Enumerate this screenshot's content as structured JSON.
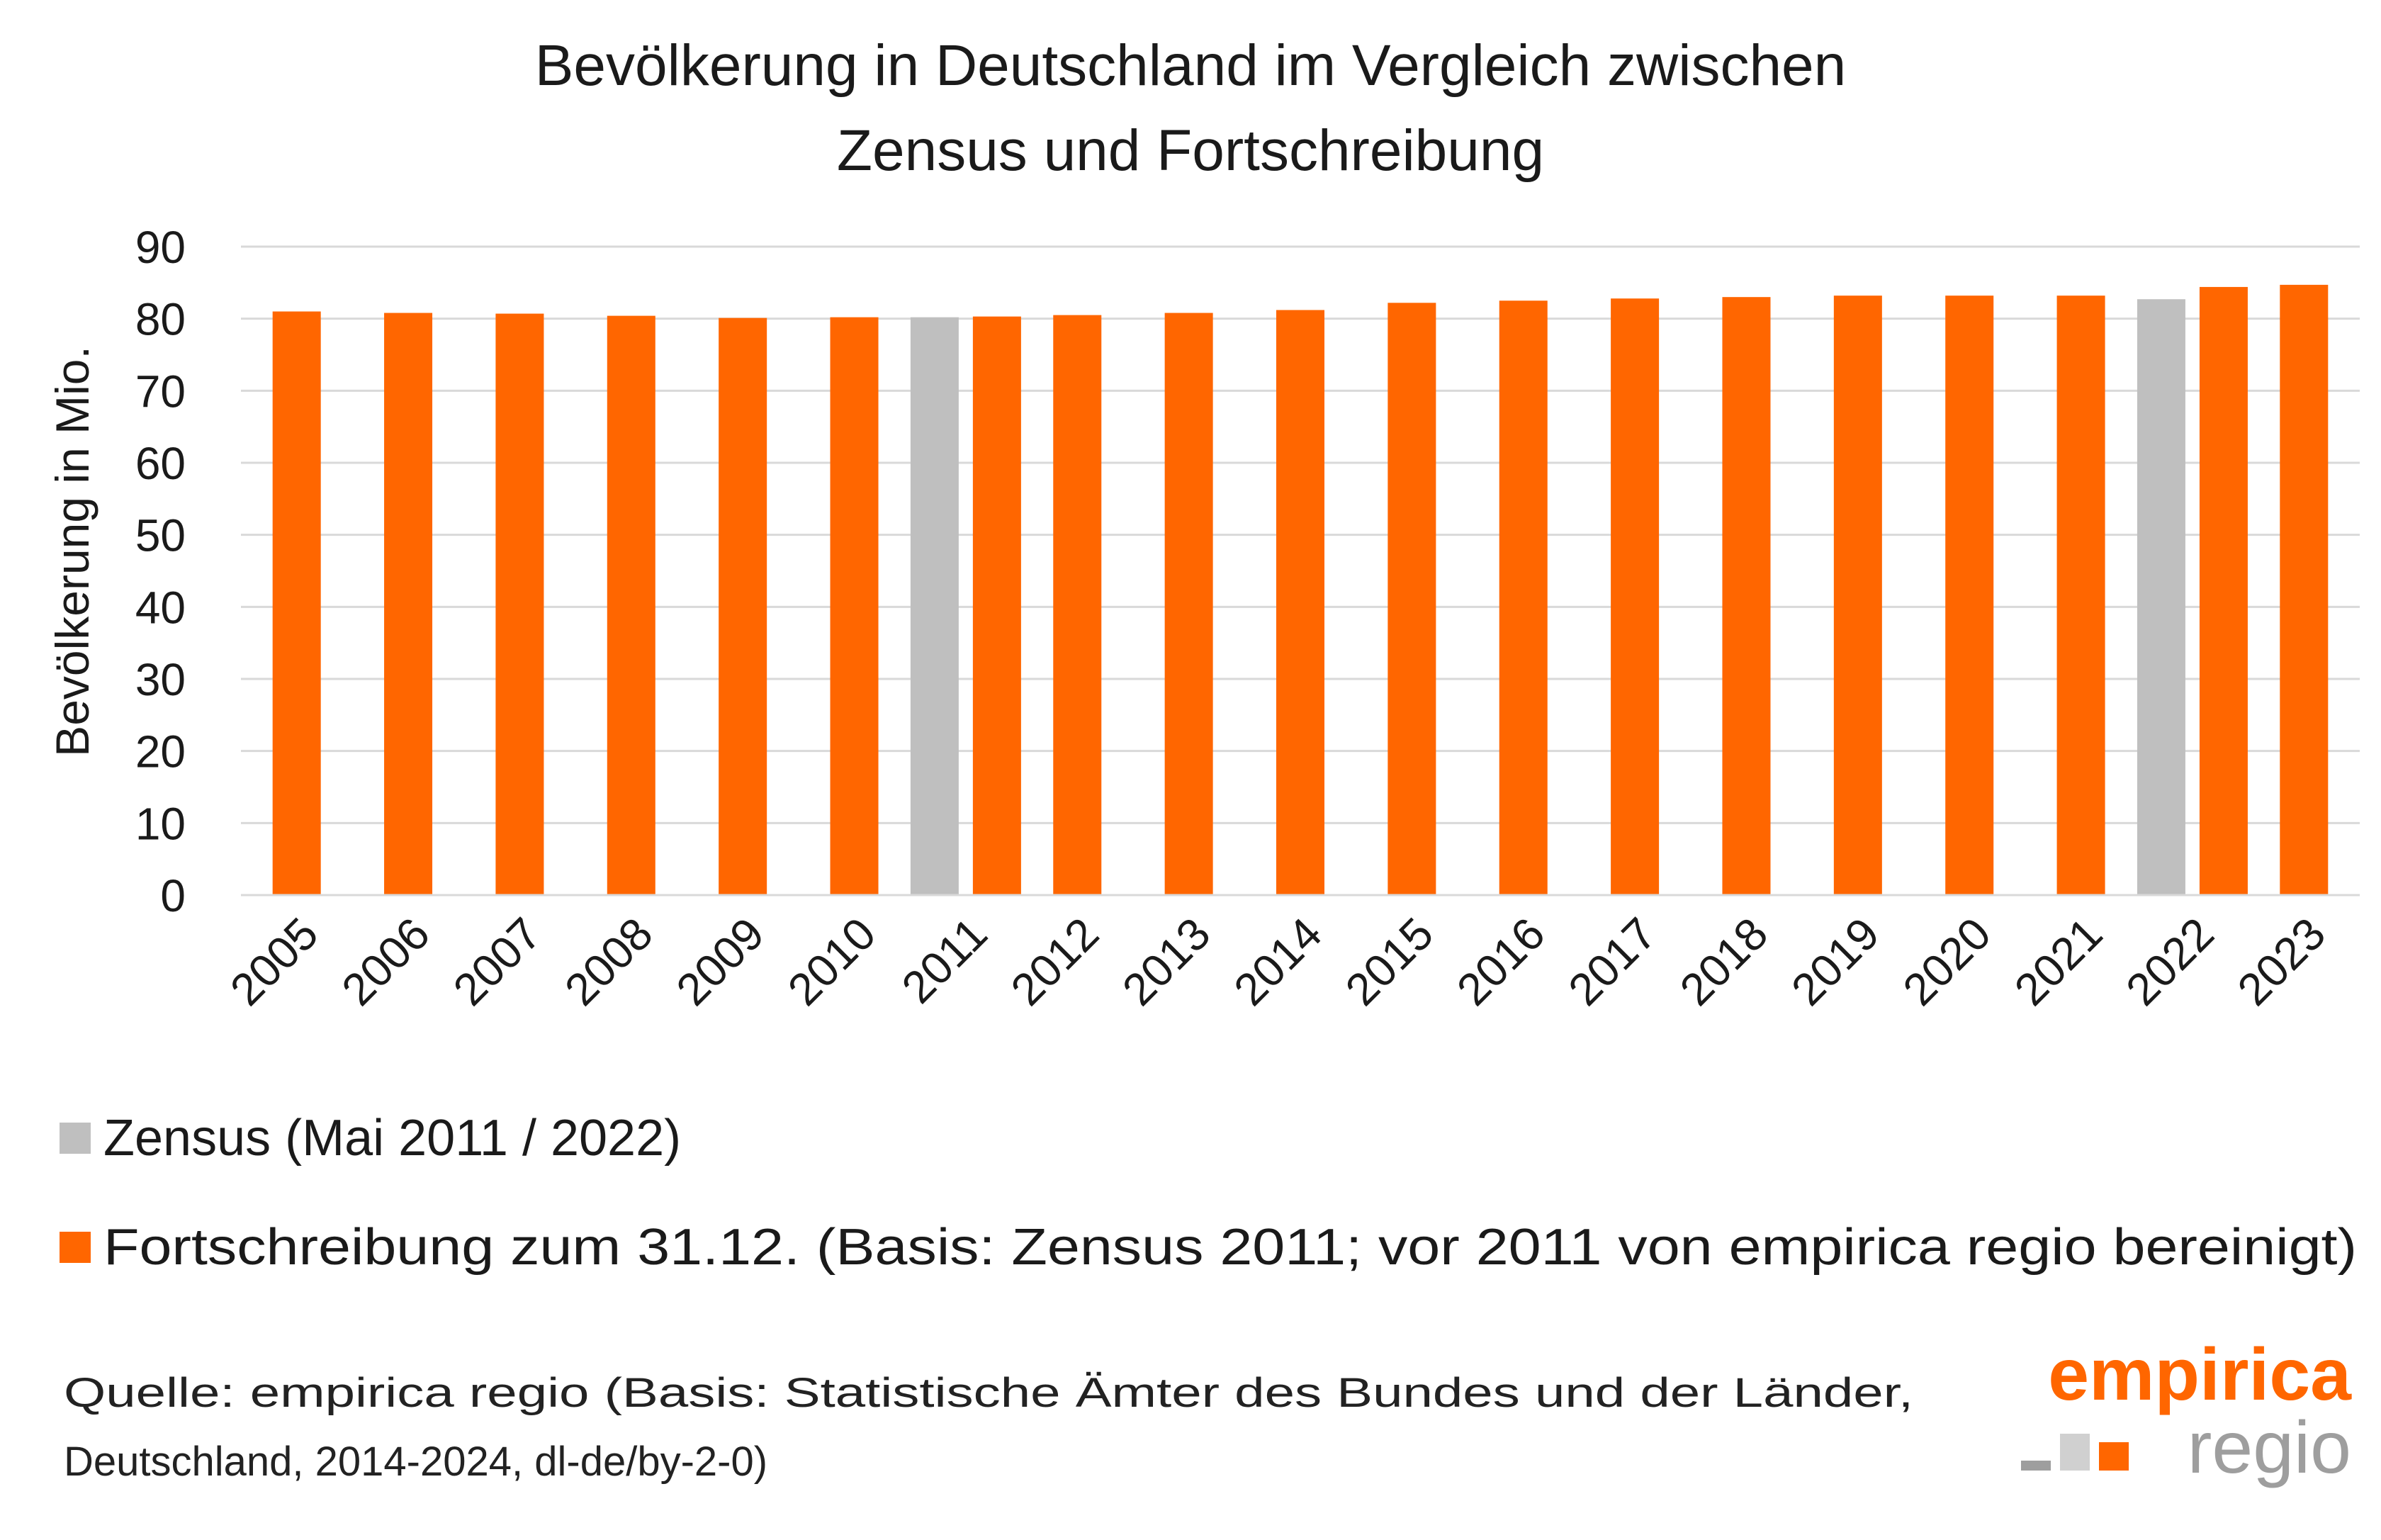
{
  "chart_data": {
    "type": "bar",
    "title": [
      "Bevölkerung in Deutschland im Vergleich zwischen",
      "Zensus und Fortschreibung"
    ],
    "ylabel": "Bevölkerung in Mio.",
    "xlabel": "",
    "ylim": [
      0,
      90
    ],
    "yticks": [
      0,
      10,
      20,
      30,
      40,
      50,
      60,
      70,
      80,
      90
    ],
    "grid": true,
    "legend_position": "bottom-left",
    "categories": [
      "2005",
      "2006",
      "2007",
      "2008",
      "2009",
      "2010",
      "2011",
      "2012",
      "2013",
      "2014",
      "2015",
      "2016",
      "2017",
      "2018",
      "2019",
      "2020",
      "2021",
      "2022",
      "2023"
    ],
    "series": [
      {
        "name": "Zensus (Mai 2011 / 2022)",
        "color": "#bfbfbf",
        "values": [
          null,
          null,
          null,
          null,
          null,
          null,
          80.2,
          null,
          null,
          null,
          null,
          null,
          null,
          null,
          null,
          null,
          null,
          82.7,
          null
        ]
      },
      {
        "name": "Fortschreibung zum 31.12. (Basis: Zensus 2011; vor 2011 von empirica regio bereinigt)",
        "color": "#ff6600",
        "values": [
          81.0,
          80.8,
          80.7,
          80.4,
          80.1,
          80.2,
          80.3,
          80.5,
          80.8,
          81.2,
          82.2,
          82.5,
          82.8,
          83.0,
          83.2,
          83.2,
          83.2,
          84.4,
          84.7
        ]
      }
    ]
  },
  "source": {
    "lines": [
      "Quelle: empirica regio (Basis: Statistische Ämter des Bundes und der Länder,",
      "Deutschland, 2014-2024, dl-de/by-2-0)"
    ]
  },
  "logo": {
    "top": "empirica",
    "bottom": "regio",
    "square_colors": [
      "#9e9e9e",
      "#d0d0d0",
      "#ff6600"
    ]
  }
}
